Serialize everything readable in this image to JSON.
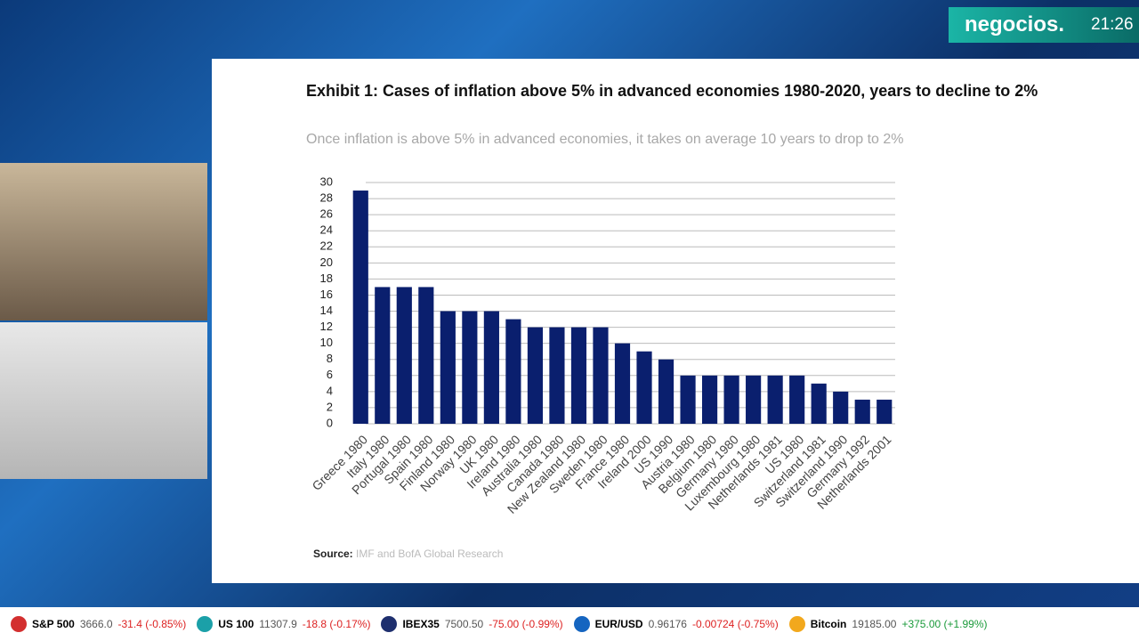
{
  "chart_data": {
    "type": "bar",
    "title": "Exhibit 1: Cases of inflation above 5% in advanced economies 1980-2020, years to decline to 2%",
    "subtitle": "Once inflation is above 5% in advanced economies, it takes on average 10 years to drop to 2%",
    "source_label": "Source:",
    "source": "IMF and BofA Global Research",
    "categories": [
      "Greece 1980",
      "Italy 1980",
      "Portugal 1980",
      "Spain 1980",
      "Finland 1980",
      "Norway 1980",
      "UK 1980",
      "Ireland 1980",
      "Australia 1980",
      "Canada 1980",
      "New Zealand 1980",
      "Sweden 1980",
      "France 1980",
      "Ireland 2000",
      "US 1990",
      "Austria 1980",
      "Belgium 1980",
      "Germany 1980",
      "Luxembourg 1980",
      "Netherlands 1981",
      "US 1980",
      "Switzerland 1981",
      "Switzerland 1990",
      "Germany 1992",
      "Netherlands 2001"
    ],
    "values": [
      29,
      17,
      17,
      17,
      14,
      14,
      14,
      13,
      12,
      12,
      12,
      12,
      10,
      9,
      8,
      6,
      6,
      6,
      6,
      6,
      6,
      5,
      4,
      3,
      3
    ],
    "color": "#0a1f6e",
    "ylim": [
      0,
      30
    ],
    "yticks": [
      0,
      2,
      4,
      6,
      8,
      10,
      12,
      14,
      16,
      18,
      20,
      22,
      24,
      26,
      28,
      30
    ],
    "grid": true
  },
  "broadcast": {
    "logo": "negocios.",
    "time": "21:26",
    "ticker": [
      {
        "name": "S&P 500",
        "value": "3666.0",
        "change": "-31.4 (-0.85%)"
      },
      {
        "name": "US 100",
        "value": "11307.9",
        "change": "-18.8 (-0.17%)"
      },
      {
        "name": "IBEX35",
        "value": "7500.50",
        "change": "-75.00 (-0.99%)"
      },
      {
        "name": "EUR/USD",
        "value": "0.96176",
        "change": "-0.00724 (-0.75%)"
      },
      {
        "name": "Bitcoin",
        "value": "19185.00",
        "change": "+375.00 (+1.99%)"
      }
    ]
  }
}
